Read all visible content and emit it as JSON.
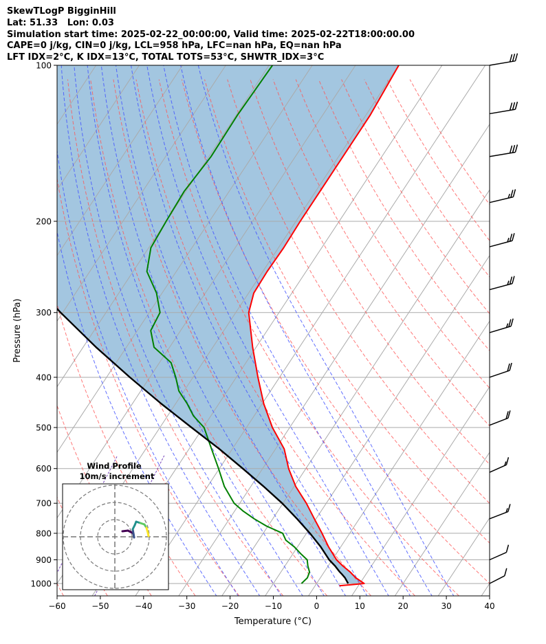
{
  "header": {
    "title": "SkewTLogP BigginHill",
    "location": "Lat: 51.33   Lon: 0.03",
    "times": "Simulation start time: 2025-02-22_00:00:00, Valid time: 2025-02-22T18:00:00.00",
    "indices1": "CAPE=0 j/kg, CIN=0 j/kg, LCL=958 hPa, LFC=nan hPa, EQ=nan hPa",
    "indices2": "LFT IDX=2°C, K IDX=13°C, TOTAL TOTS=53°C, SHWTR_IDX=3°C"
  },
  "colors": {
    "temperature": "#ff0000",
    "dewpoint": "#008000",
    "parcel": "#000000",
    "cape_fill": "#a3c6e0",
    "dry_adiabat": "#ff5555",
    "moist_adiabat": "#4455ff",
    "mixing_ratio": "#7744bb",
    "isotherm": "#aaaaaa",
    "isobar": "#aaaaaa"
  },
  "chart_data": {
    "type": "skewt-logp",
    "xlabel": "Temperature (°C)",
    "ylabel": "Pressure (hPa)",
    "xlim": [
      -60,
      40
    ],
    "ylim": [
      1040,
      100
    ],
    "x_ticks": [
      -60,
      -50,
      -40,
      -30,
      -20,
      -10,
      0,
      10,
      20,
      30,
      40
    ],
    "y_ticks": [
      1000,
      900,
      800,
      700,
      600,
      500,
      400,
      300,
      200,
      100
    ],
    "skew_deg_per_decade": 79,
    "temperature": {
      "pressure": [
        1010,
        1000,
        975,
        950,
        925,
        900,
        850,
        800,
        750,
        700,
        650,
        600,
        550,
        500,
        450,
        400,
        350,
        300,
        275,
        250,
        225,
        200,
        175,
        150,
        125,
        100
      ],
      "temperature": [
        5.6,
        11.0,
        8.2,
        6.0,
        3.4,
        1.0,
        -2.8,
        -6.4,
        -10.4,
        -14.6,
        -19.6,
        -24.0,
        -28.0,
        -34.0,
        -39.6,
        -45.0,
        -50.8,
        -57.0,
        -58.8,
        -59.0,
        -58.8,
        -59.0,
        -59.0,
        -59.0,
        -59.0,
        -60.0
      ]
    },
    "dewpoint": {
      "pressure": [
        1000,
        975,
        950,
        925,
        900,
        875,
        850,
        825,
        800,
        775,
        750,
        725,
        700,
        650,
        600,
        550,
        500,
        475,
        450,
        425,
        400,
        375,
        350,
        325,
        300,
        275,
        250,
        225,
        200,
        175,
        150,
        125,
        100
      ],
      "dewpoint": [
        -3.5,
        -3.0,
        -3.4,
        -4.7,
        -5.8,
        -8.3,
        -10.7,
        -13.7,
        -15.5,
        -20.3,
        -24.3,
        -28.0,
        -31.3,
        -36.1,
        -40.2,
        -44.8,
        -49.8,
        -54.0,
        -57.3,
        -61.2,
        -64.0,
        -67.3,
        -73.6,
        -76.9,
        -77.5,
        -81.3,
        -86.8,
        -89.5,
        -90.0,
        -90.4,
        -89.5,
        -89.7,
        -89.2
      ]
    },
    "parcel": {
      "pressure": [
        1000,
        975,
        958,
        950,
        925,
        900,
        850,
        800,
        750,
        700,
        650,
        600,
        550,
        500,
        450,
        400,
        350,
        300,
        250,
        200,
        150,
        100
      ],
      "temperature": [
        7.3,
        5.7,
        4.3,
        3.6,
        1.6,
        -0.7,
        -4.6,
        -9.2,
        -14.4,
        -20.2,
        -27.0,
        -34.6,
        -43.0,
        -52.7,
        -63.3,
        -74.6,
        -87.0,
        -100.5,
        -115.7,
        -132.7,
        -152.5,
        -177.8
      ]
    },
    "isotherms_C": [
      -150,
      -140,
      -130,
      -120,
      -110,
      -100,
      -90,
      -80,
      -70,
      -60,
      -50,
      -40,
      -30,
      -20,
      -10,
      0,
      10,
      20,
      30,
      40
    ],
    "dry_adiabats_C": [
      -60,
      -50,
      -40,
      -30,
      -20,
      -10,
      0,
      10,
      20,
      30,
      40,
      50,
      60,
      70,
      80,
      90,
      100,
      110,
      120,
      130,
      140
    ],
    "moist_adiabats_C": [
      -25,
      -20,
      -15,
      -10,
      -5,
      0,
      5,
      10,
      15,
      20,
      25,
      30
    ],
    "mixing_ratio_lines_gkg": [
      0.01,
      0.04
    ],
    "wind_barbs": {
      "pressure": [
        100,
        124,
        150,
        184,
        224,
        271,
        328,
        400,
        495,
        610,
        750,
        900,
        1000
      ],
      "speed_kt": [
        30,
        30,
        30,
        25,
        25,
        25,
        25,
        20,
        20,
        15,
        15,
        10,
        10
      ],
      "direction_deg": [
        260,
        260,
        260,
        245,
        240,
        240,
        235,
        230,
        225,
        220,
        225,
        220,
        215
      ]
    }
  },
  "wind_profile": {
    "title": "Wind Profile",
    "subtitle": "10m/s increment",
    "ring_count": 3
  }
}
